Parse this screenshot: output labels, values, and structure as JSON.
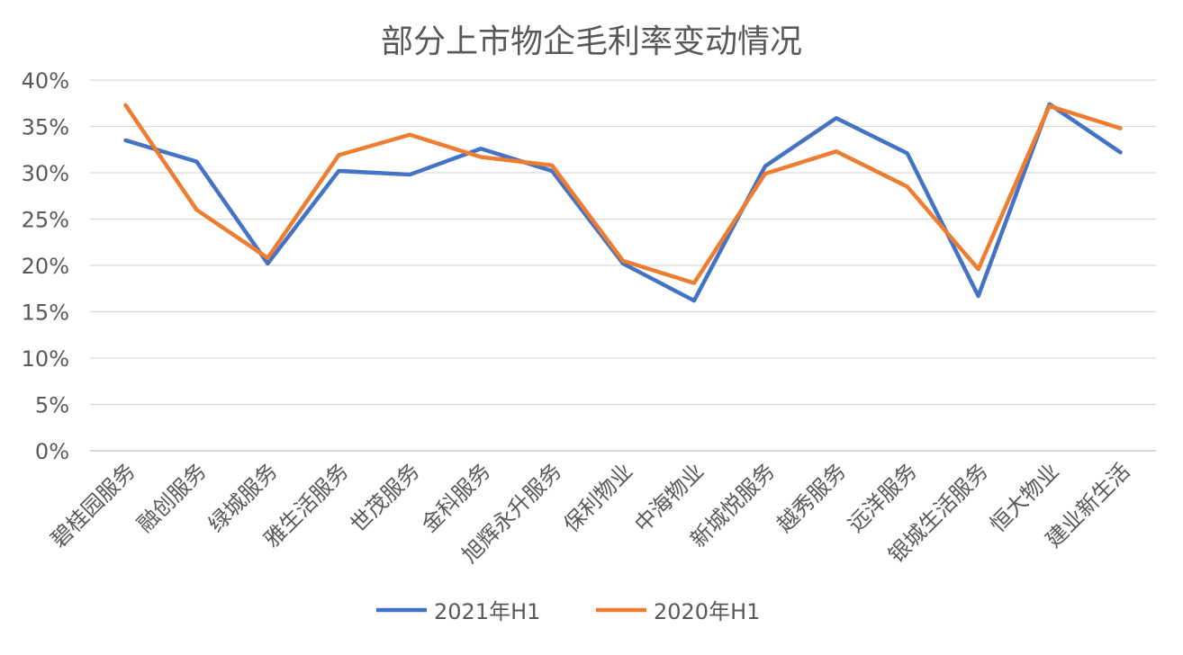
{
  "chart_data": {
    "type": "line",
    "title": "部分上市物企毛利率变动情况",
    "categories": [
      "碧桂园服务",
      "融创服务",
      "绿城服务",
      "雅生活服务",
      "世茂服务",
      "金科服务",
      "旭辉永升服务",
      "保利物业",
      "中海物业",
      "新城悦服务",
      "越秀服务",
      "远洋服务",
      "银城生活服务",
      "恒大物业",
      "建业新生活"
    ],
    "series": [
      {
        "name": "2021年H1",
        "color": "#4472C4",
        "values": [
          33.5,
          31.2,
          20.2,
          30.2,
          29.8,
          32.6,
          30.2,
          20.2,
          16.2,
          30.7,
          35.9,
          32.1,
          16.7,
          37.4,
          32.2
        ]
      },
      {
        "name": "2020年H1",
        "color": "#ED7D31",
        "values": [
          37.3,
          26.0,
          20.8,
          31.9,
          34.1,
          31.7,
          30.8,
          20.5,
          18.1,
          29.9,
          32.3,
          28.5,
          19.6,
          37.2,
          34.8
        ]
      }
    ],
    "yticks": [
      "0%",
      "5%",
      "10%",
      "15%",
      "20%",
      "25%",
      "30%",
      "35%",
      "40%"
    ],
    "ylim": [
      0,
      40
    ],
    "yunit": "%",
    "grid": true,
    "legend": "bottom"
  }
}
